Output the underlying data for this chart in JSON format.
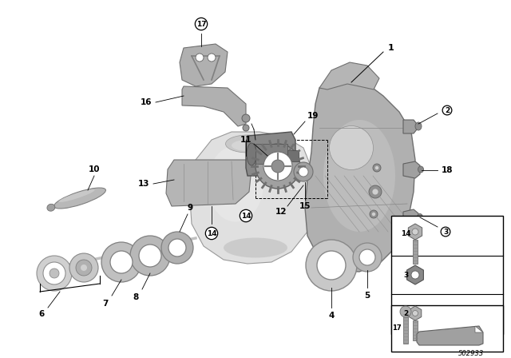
{
  "bg": "#ffffff",
  "gc": "#a8a8a8",
  "gd": "#606060",
  "gl": "#d4d4d4",
  "lc": "#000000",
  "part_number": "502933",
  "fig_w": 6.4,
  "fig_h": 4.48,
  "dpi": 100
}
